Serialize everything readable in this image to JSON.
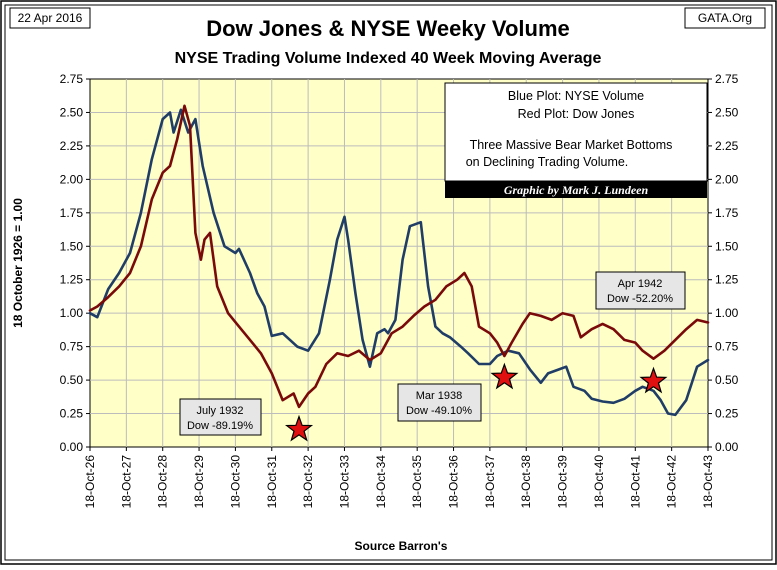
{
  "header": {
    "date": "22 Apr 2016",
    "site": "GATA.Org",
    "title": "Dow Jones & NYSE Weeky Volume",
    "subtitle": "NYSE Trading Volume Indexed 40 Week Moving Average"
  },
  "legend": {
    "blue_label": "Blue Plot: NYSE Volume",
    "red_label": "Red Plot: Dow Jones",
    "note_line1": "Three Massive Bear Market Bottoms",
    "note_line2": "on Declining Trading Volume.",
    "credit": "Graphic by Mark J. Lundeen"
  },
  "annotations": [
    {
      "line1": "July 1932",
      "line2": "Dow -89.19%",
      "star_x": 1932.55,
      "star_y": 0.13
    },
    {
      "line1": "Mar 1938",
      "line2": "Dow -49.10%",
      "star_x": 1938.2,
      "star_y": 0.52
    },
    {
      "line1": "Apr 1942",
      "line2": "Dow -52.20%",
      "star_x": 1942.3,
      "star_y": 0.49
    }
  ],
  "colors": {
    "plot_bg": "#ffffc8",
    "volume": "#1f3d66",
    "dow": "#7a0a0a",
    "star": "#e01010",
    "grid": "#bcbcbc"
  },
  "chart_data": {
    "type": "line",
    "title": "Dow Jones & NYSE Weeky Volume",
    "subtitle": "NYSE Trading Volume Indexed 40 Week Moving Average",
    "ylabel": "18 October 1926 = 1.00",
    "xlabel": "Source Barron's",
    "ylim": [
      0,
      2.75
    ],
    "xlim": [
      1926.8,
      1943.8
    ],
    "y_ticks": [
      "0.00",
      "0.25",
      "0.50",
      "0.75",
      "1.00",
      "1.25",
      "1.50",
      "1.75",
      "2.00",
      "2.25",
      "2.50",
      "2.75"
    ],
    "x_ticks": [
      "18-Oct-26",
      "18-Oct-27",
      "18-Oct-28",
      "18-Oct-29",
      "18-Oct-30",
      "18-Oct-31",
      "18-Oct-32",
      "18-Oct-33",
      "18-Oct-34",
      "18-Oct-35",
      "18-Oct-36",
      "18-Oct-37",
      "18-Oct-38",
      "18-Oct-39",
      "18-Oct-40",
      "18-Oct-41",
      "18-Oct-42",
      "18-Oct-43"
    ],
    "grid": true,
    "series": [
      {
        "name": "NYSE Volume",
        "x": [
          1926.8,
          1927.0,
          1927.3,
          1927.6,
          1927.9,
          1928.2,
          1928.5,
          1928.8,
          1929.0,
          1929.1,
          1929.3,
          1929.5,
          1929.7,
          1929.9,
          1930.2,
          1930.5,
          1930.8,
          1930.9,
          1931.2,
          1931.4,
          1931.6,
          1931.8,
          1932.1,
          1932.5,
          1932.8,
          1933.1,
          1933.4,
          1933.6,
          1933.8,
          1933.9,
          1934.1,
          1934.3,
          1934.5,
          1934.7,
          1934.9,
          1935.0,
          1935.2,
          1935.4,
          1935.6,
          1935.9,
          1936.1,
          1936.3,
          1936.5,
          1936.7,
          1937.0,
          1937.2,
          1937.5,
          1937.8,
          1938.0,
          1938.3,
          1938.6,
          1938.9,
          1939.2,
          1939.4,
          1939.7,
          1939.9,
          1940.1,
          1940.4,
          1940.6,
          1940.9,
          1941.2,
          1941.5,
          1941.8,
          1942.0,
          1942.3,
          1942.5,
          1942.7,
          1942.9,
          1943.2,
          1943.5,
          1943.8
        ],
        "values": [
          1.0,
          0.97,
          1.18,
          1.3,
          1.45,
          1.75,
          2.15,
          2.45,
          2.5,
          2.35,
          2.52,
          2.35,
          2.45,
          2.1,
          1.75,
          1.5,
          1.45,
          1.48,
          1.3,
          1.15,
          1.05,
          0.83,
          0.85,
          0.75,
          0.72,
          0.85,
          1.25,
          1.55,
          1.72,
          1.55,
          1.15,
          0.8,
          0.6,
          0.85,
          0.88,
          0.85,
          0.95,
          1.4,
          1.65,
          1.68,
          1.2,
          0.9,
          0.85,
          0.82,
          0.75,
          0.7,
          0.62,
          0.62,
          0.68,
          0.72,
          0.7,
          0.58,
          0.48,
          0.55,
          0.58,
          0.6,
          0.45,
          0.42,
          0.36,
          0.34,
          0.33,
          0.36,
          0.42,
          0.45,
          0.42,
          0.35,
          0.25,
          0.24,
          0.35,
          0.6,
          0.65
        ]
      },
      {
        "name": "Dow Jones",
        "x": [
          1926.8,
          1927.0,
          1927.3,
          1927.6,
          1927.9,
          1928.2,
          1928.5,
          1928.8,
          1929.0,
          1929.2,
          1929.4,
          1929.55,
          1929.7,
          1929.85,
          1929.95,
          1930.1,
          1930.3,
          1930.6,
          1930.9,
          1931.2,
          1931.5,
          1931.8,
          1932.1,
          1932.4,
          1932.55,
          1932.8,
          1933.0,
          1933.3,
          1933.6,
          1933.9,
          1934.2,
          1934.5,
          1934.8,
          1935.1,
          1935.4,
          1935.7,
          1936.0,
          1936.3,
          1936.6,
          1936.9,
          1937.1,
          1937.3,
          1937.5,
          1937.8,
          1938.0,
          1938.2,
          1938.4,
          1938.7,
          1938.9,
          1939.2,
          1939.5,
          1939.8,
          1940.1,
          1940.3,
          1940.6,
          1940.9,
          1941.2,
          1941.5,
          1941.8,
          1942.0,
          1942.3,
          1942.6,
          1942.9,
          1943.2,
          1943.5,
          1943.8
        ],
        "values": [
          1.02,
          1.05,
          1.12,
          1.2,
          1.3,
          1.5,
          1.85,
          2.05,
          2.1,
          2.3,
          2.55,
          2.4,
          1.6,
          1.4,
          1.55,
          1.6,
          1.2,
          1.0,
          0.9,
          0.8,
          0.7,
          0.55,
          0.35,
          0.4,
          0.3,
          0.4,
          0.45,
          0.62,
          0.7,
          0.68,
          0.72,
          0.65,
          0.7,
          0.85,
          0.9,
          0.98,
          1.05,
          1.1,
          1.2,
          1.25,
          1.3,
          1.2,
          0.9,
          0.85,
          0.78,
          0.68,
          0.78,
          0.92,
          1.0,
          0.98,
          0.95,
          1.0,
          0.98,
          0.82,
          0.88,
          0.92,
          0.88,
          0.8,
          0.78,
          0.72,
          0.66,
          0.72,
          0.8,
          0.88,
          0.95,
          0.93
        ]
      }
    ]
  }
}
